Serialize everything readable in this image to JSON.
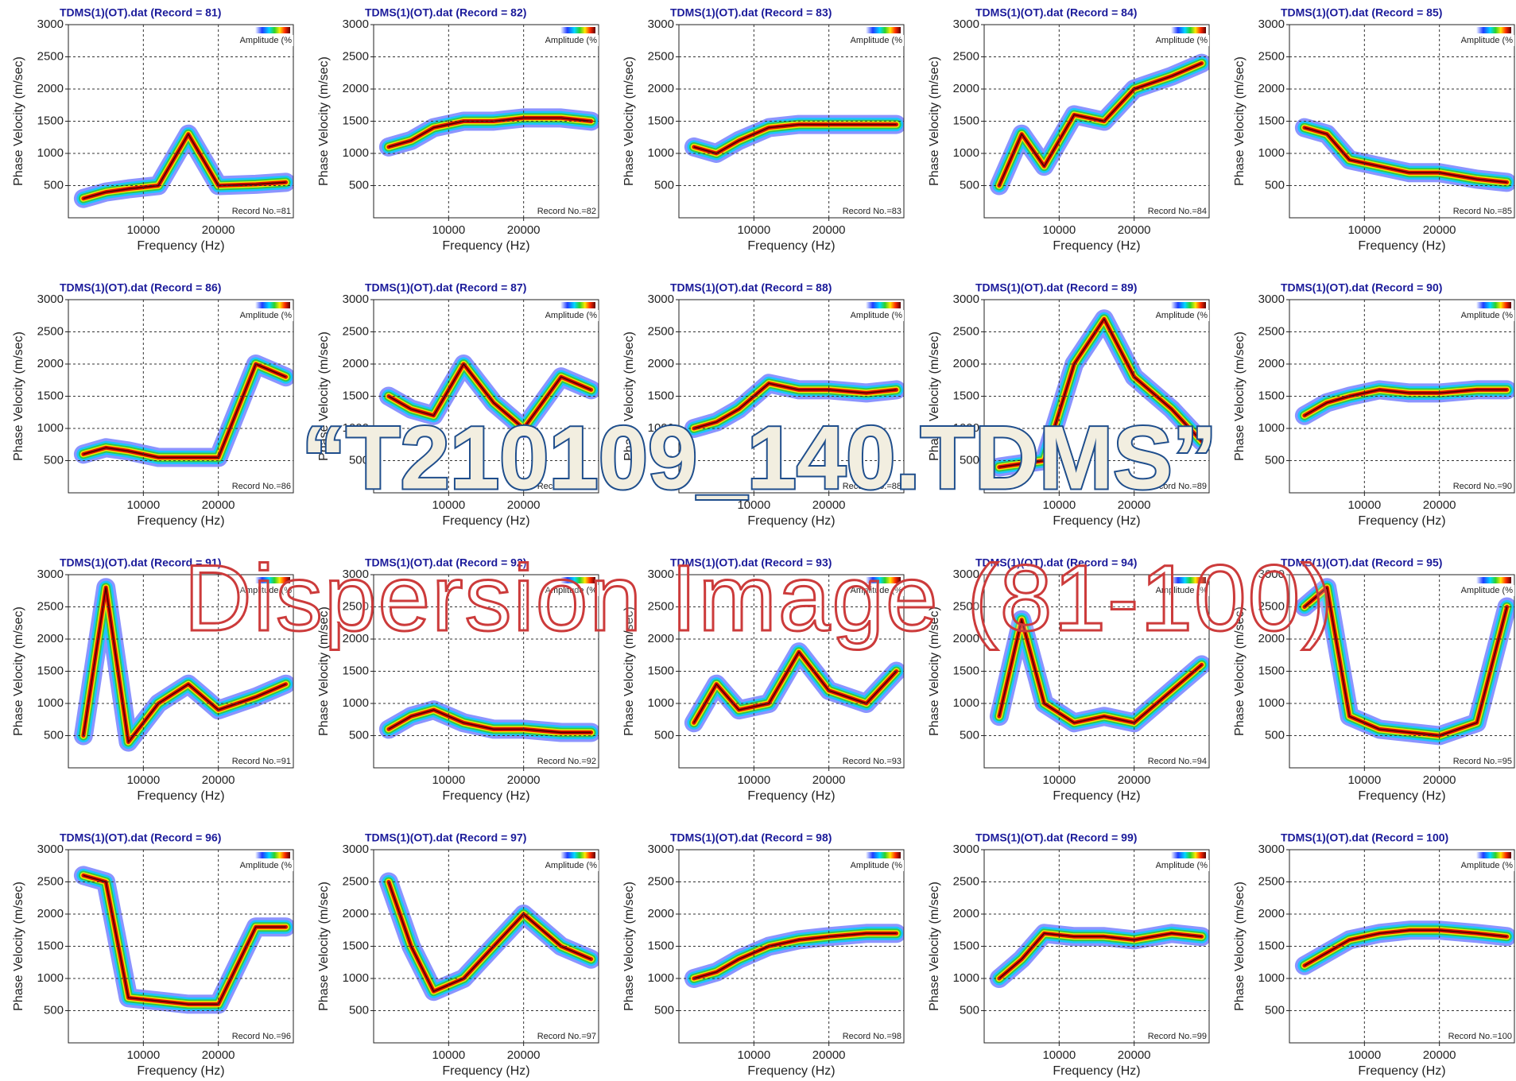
{
  "overlay_title": "“T210109_140.TDMS”",
  "overlay_subtitle": "Dispersion Image (81-100)",
  "chart_data": [
    {
      "type": "dispersion",
      "title": "TDMS(1)(OT).dat (Record = 81)",
      "xlabel": "Frequency (Hz)",
      "ylabel": "Phase Velocity (m/sec)",
      "legend_label": "Amplitude (%",
      "annotation": "Record No.=81",
      "xlim": [
        0,
        30000
      ],
      "xticks": [
        10000,
        20000
      ],
      "ylim": [
        0,
        3000
      ],
      "yticks": [
        500,
        1000,
        1500,
        2000,
        2500,
        3000
      ],
      "grid": true,
      "x": [
        2000,
        5000,
        8000,
        12000,
        16000,
        20000,
        25000,
        29000
      ],
      "values": [
        300,
        400,
        450,
        500,
        1300,
        500,
        520,
        550
      ]
    },
    {
      "type": "dispersion",
      "title": "TDMS(1)(OT).dat (Record = 82)",
      "xlabel": "Frequency (Hz)",
      "ylabel": "Phase Velocity (m/sec)",
      "legend_label": "Amplitude (%",
      "annotation": "Record No.=82",
      "xlim": [
        0,
        30000
      ],
      "xticks": [
        10000,
        20000
      ],
      "ylim": [
        0,
        3000
      ],
      "yticks": [
        500,
        1000,
        1500,
        2000,
        2500,
        3000
      ],
      "grid": true,
      "x": [
        2000,
        5000,
        8000,
        12000,
        16000,
        20000,
        25000,
        29000
      ],
      "values": [
        1100,
        1200,
        1400,
        1500,
        1500,
        1550,
        1550,
        1500
      ]
    },
    {
      "type": "dispersion",
      "title": "TDMS(1)(OT).dat (Record = 83)",
      "xlabel": "Frequency (Hz)",
      "ylabel": "Phase Velocity (m/sec)",
      "legend_label": "Amplitude (%",
      "annotation": "Record No.=83",
      "xlim": [
        0,
        30000
      ],
      "xticks": [
        10000,
        20000
      ],
      "ylim": [
        0,
        3000
      ],
      "yticks": [
        500,
        1000,
        1500,
        2000,
        2500,
        3000
      ],
      "grid": true,
      "x": [
        2000,
        5000,
        8000,
        12000,
        16000,
        20000,
        25000,
        29000
      ],
      "values": [
        1100,
        1000,
        1200,
        1400,
        1450,
        1450,
        1450,
        1450
      ]
    },
    {
      "type": "dispersion",
      "title": "TDMS(1)(OT).dat (Record = 84)",
      "xlabel": "Frequency (Hz)",
      "ylabel": "Phase Velocity (m/sec)",
      "legend_label": "Amplitude (%",
      "annotation": "Record No.=84",
      "xlim": [
        0,
        30000
      ],
      "xticks": [
        10000,
        20000
      ],
      "ylim": [
        0,
        3000
      ],
      "yticks": [
        500,
        1000,
        1500,
        2000,
        2500,
        3000
      ],
      "grid": true,
      "x": [
        2000,
        5000,
        8000,
        12000,
        16000,
        20000,
        25000,
        29000
      ],
      "values": [
        500,
        1300,
        800,
        1600,
        1500,
        2000,
        2200,
        2400
      ]
    },
    {
      "type": "dispersion",
      "title": "TDMS(1)(OT).dat (Record = 85)",
      "xlabel": "Frequency (Hz)",
      "ylabel": "Phase Velocity (m/sec)",
      "legend_label": "Amplitude (%",
      "annotation": "Record No.=85",
      "xlim": [
        0,
        30000
      ],
      "xticks": [
        10000,
        20000
      ],
      "ylim": [
        0,
        3000
      ],
      "yticks": [
        500,
        1000,
        1500,
        2000,
        2500,
        3000
      ],
      "grid": true,
      "x": [
        2000,
        5000,
        8000,
        12000,
        16000,
        20000,
        25000,
        29000
      ],
      "values": [
        1400,
        1300,
        900,
        800,
        700,
        700,
        600,
        550
      ]
    },
    {
      "type": "dispersion",
      "title": "TDMS(1)(OT).dat (Record = 86)",
      "xlabel": "Frequency (Hz)",
      "ylabel": "Phase Velocity (m/sec)",
      "legend_label": "Amplitude (%",
      "annotation": "Record No.=86",
      "xlim": [
        0,
        30000
      ],
      "xticks": [
        10000,
        20000
      ],
      "ylim": [
        0,
        3000
      ],
      "yticks": [
        500,
        1000,
        1500,
        2000,
        2500,
        3000
      ],
      "grid": true,
      "x": [
        2000,
        5000,
        8000,
        12000,
        16000,
        20000,
        25000,
        29000
      ],
      "values": [
        600,
        700,
        650,
        550,
        550,
        550,
        2000,
        1800
      ]
    },
    {
      "type": "dispersion",
      "title": "TDMS(1)(OT).dat (Record = 87)",
      "xlabel": "Frequency (Hz)",
      "ylabel": "Phase Velocity (m/sec)",
      "legend_label": "Amplitude (%",
      "annotation": "Record No.=87",
      "xlim": [
        0,
        30000
      ],
      "xticks": [
        10000,
        20000
      ],
      "ylim": [
        0,
        3000
      ],
      "yticks": [
        500,
        1000,
        1500,
        2000,
        2500,
        3000
      ],
      "grid": true,
      "x": [
        2000,
        5000,
        8000,
        12000,
        16000,
        20000,
        25000,
        29000
      ],
      "values": [
        1500,
        1300,
        1200,
        2000,
        1400,
        1000,
        1800,
        1600
      ]
    },
    {
      "type": "dispersion",
      "title": "TDMS(1)(OT).dat (Record = 88)",
      "xlabel": "Frequency (Hz)",
      "ylabel": "Phase Velocity (m/sec)",
      "legend_label": "Amplitude (%",
      "annotation": "Record No.=88",
      "xlim": [
        0,
        30000
      ],
      "xticks": [
        10000,
        20000
      ],
      "ylim": [
        0,
        3000
      ],
      "yticks": [
        500,
        1000,
        1500,
        2000,
        2500,
        3000
      ],
      "grid": true,
      "x": [
        2000,
        5000,
        8000,
        12000,
        16000,
        20000,
        25000,
        29000
      ],
      "values": [
        1000,
        1100,
        1300,
        1700,
        1600,
        1600,
        1550,
        1600
      ]
    },
    {
      "type": "dispersion",
      "title": "TDMS(1)(OT).dat (Record = 89)",
      "xlabel": "Frequency (Hz)",
      "ylabel": "Phase Velocity (m/sec)",
      "legend_label": "Amplitude (%",
      "annotation": "Record No.=89",
      "xlim": [
        0,
        30000
      ],
      "xticks": [
        10000,
        20000
      ],
      "ylim": [
        0,
        3000
      ],
      "yticks": [
        500,
        1000,
        1500,
        2000,
        2500,
        3000
      ],
      "grid": true,
      "x": [
        2000,
        5000,
        8000,
        12000,
        16000,
        20000,
        25000,
        29000
      ],
      "values": [
        400,
        450,
        500,
        2000,
        2700,
        1800,
        1300,
        800
      ]
    },
    {
      "type": "dispersion",
      "title": "TDMS(1)(OT).dat (Record = 90)",
      "xlabel": "Frequency (Hz)",
      "ylabel": "Phase Velocity (m/sec)",
      "legend_label": "Amplitude (%",
      "annotation": "Record No.=90",
      "xlim": [
        0,
        30000
      ],
      "xticks": [
        10000,
        20000
      ],
      "ylim": [
        0,
        3000
      ],
      "yticks": [
        500,
        1000,
        1500,
        2000,
        2500,
        3000
      ],
      "grid": true,
      "x": [
        2000,
        5000,
        8000,
        12000,
        16000,
        20000,
        25000,
        29000
      ],
      "values": [
        1200,
        1400,
        1500,
        1600,
        1550,
        1550,
        1600,
        1600
      ]
    },
    {
      "type": "dispersion",
      "title": "TDMS(1)(OT).dat (Record = 91)",
      "xlabel": "Frequency (Hz)",
      "ylabel": "Phase Velocity (m/sec)",
      "legend_label": "Amplitude (%",
      "annotation": "Record No.=91",
      "xlim": [
        0,
        30000
      ],
      "xticks": [
        10000,
        20000
      ],
      "ylim": [
        0,
        3000
      ],
      "yticks": [
        500,
        1000,
        1500,
        2000,
        2500,
        3000
      ],
      "grid": true,
      "x": [
        2000,
        5000,
        8000,
        12000,
        16000,
        20000,
        25000,
        29000
      ],
      "values": [
        500,
        2800,
        400,
        1000,
        1300,
        900,
        1100,
        1300
      ]
    },
    {
      "type": "dispersion",
      "title": "TDMS(1)(OT).dat (Record = 92)",
      "xlabel": "Frequency (Hz)",
      "ylabel": "Phase Velocity (m/sec)",
      "legend_label": "Amplitude (%",
      "annotation": "Record No.=92",
      "xlim": [
        0,
        30000
      ],
      "xticks": [
        10000,
        20000
      ],
      "ylim": [
        0,
        3000
      ],
      "yticks": [
        500,
        1000,
        1500,
        2000,
        2500,
        3000
      ],
      "grid": true,
      "x": [
        2000,
        5000,
        8000,
        12000,
        16000,
        20000,
        25000,
        29000
      ],
      "values": [
        600,
        800,
        900,
        700,
        600,
        600,
        550,
        550
      ]
    },
    {
      "type": "dispersion",
      "title": "TDMS(1)(OT).dat (Record = 93)",
      "xlabel": "Frequency (Hz)",
      "ylabel": "Phase Velocity (m/sec)",
      "legend_label": "Amplitude (%",
      "annotation": "Record No.=93",
      "xlim": [
        0,
        30000
      ],
      "xticks": [
        10000,
        20000
      ],
      "ylim": [
        0,
        3000
      ],
      "yticks": [
        500,
        1000,
        1500,
        2000,
        2500,
        3000
      ],
      "grid": true,
      "x": [
        2000,
        5000,
        8000,
        12000,
        16000,
        20000,
        25000,
        29000
      ],
      "values": [
        700,
        1300,
        900,
        1000,
        1800,
        1200,
        1000,
        1500
      ]
    },
    {
      "type": "dispersion",
      "title": "TDMS(1)(OT).dat (Record = 94)",
      "xlabel": "Frequency (Hz)",
      "ylabel": "Phase Velocity (m/sec)",
      "legend_label": "Amplitude (%",
      "annotation": "Record No.=94",
      "xlim": [
        0,
        30000
      ],
      "xticks": [
        10000,
        20000
      ],
      "ylim": [
        0,
        3000
      ],
      "yticks": [
        500,
        1000,
        1500,
        2000,
        2500,
        3000
      ],
      "grid": true,
      "x": [
        2000,
        5000,
        8000,
        12000,
        16000,
        20000,
        25000,
        29000
      ],
      "values": [
        800,
        2300,
        1000,
        700,
        800,
        700,
        1200,
        1600
      ]
    },
    {
      "type": "dispersion",
      "title": "TDMS(1)(OT).dat (Record = 95)",
      "xlabel": "Frequency (Hz)",
      "ylabel": "Phase Velocity (m/sec)",
      "legend_label": "Amplitude (%",
      "annotation": "Record No.=95",
      "xlim": [
        0,
        30000
      ],
      "xticks": [
        10000,
        20000
      ],
      "ylim": [
        0,
        3000
      ],
      "yticks": [
        500,
        1000,
        1500,
        2000,
        2500,
        3000
      ],
      "grid": true,
      "x": [
        2000,
        5000,
        8000,
        12000,
        16000,
        20000,
        25000,
        29000
      ],
      "values": [
        2500,
        2800,
        800,
        600,
        550,
        500,
        700,
        2500
      ]
    },
    {
      "type": "dispersion",
      "title": "TDMS(1)(OT).dat (Record = 96)",
      "xlabel": "Frequency (Hz)",
      "ylabel": "Phase Velocity (m/sec)",
      "legend_label": "Amplitude (%",
      "annotation": "Record No.=96",
      "xlim": [
        0,
        30000
      ],
      "xticks": [
        10000,
        20000
      ],
      "ylim": [
        0,
        3000
      ],
      "yticks": [
        500,
        1000,
        1500,
        2000,
        2500,
        3000
      ],
      "grid": true,
      "x": [
        2000,
        5000,
        8000,
        12000,
        16000,
        20000,
        25000,
        29000
      ],
      "values": [
        2600,
        2500,
        700,
        650,
        600,
        600,
        1800,
        1800
      ]
    },
    {
      "type": "dispersion",
      "title": "TDMS(1)(OT).dat (Record = 97)",
      "xlabel": "Frequency (Hz)",
      "ylabel": "Phase Velocity (m/sec)",
      "legend_label": "Amplitude (%",
      "annotation": "Record No.=97",
      "xlim": [
        0,
        30000
      ],
      "xticks": [
        10000,
        20000
      ],
      "ylim": [
        0,
        3000
      ],
      "yticks": [
        500,
        1000,
        1500,
        2000,
        2500,
        3000
      ],
      "grid": true,
      "x": [
        2000,
        5000,
        8000,
        12000,
        16000,
        20000,
        25000,
        29000
      ],
      "values": [
        2500,
        1500,
        800,
        1000,
        1500,
        2000,
        1500,
        1300
      ]
    },
    {
      "type": "dispersion",
      "title": "TDMS(1)(OT).dat (Record = 98)",
      "xlabel": "Frequency (Hz)",
      "ylabel": "Phase Velocity (m/sec)",
      "legend_label": "Amplitude (%",
      "annotation": "Record No.=98",
      "xlim": [
        0,
        30000
      ],
      "xticks": [
        10000,
        20000
      ],
      "ylim": [
        0,
        3000
      ],
      "yticks": [
        500,
        1000,
        1500,
        2000,
        2500,
        3000
      ],
      "grid": true,
      "x": [
        2000,
        5000,
        8000,
        12000,
        16000,
        20000,
        25000,
        29000
      ],
      "values": [
        1000,
        1100,
        1300,
        1500,
        1600,
        1650,
        1700,
        1700
      ]
    },
    {
      "type": "dispersion",
      "title": "TDMS(1)(OT).dat (Record = 99)",
      "xlabel": "Frequency (Hz)",
      "ylabel": "Phase Velocity (m/sec)",
      "legend_label": "Amplitude (%",
      "annotation": "Record No.=99",
      "xlim": [
        0,
        30000
      ],
      "xticks": [
        10000,
        20000
      ],
      "ylim": [
        0,
        3000
      ],
      "yticks": [
        500,
        1000,
        1500,
        2000,
        2500,
        3000
      ],
      "grid": true,
      "x": [
        2000,
        5000,
        8000,
        12000,
        16000,
        20000,
        25000,
        29000
      ],
      "values": [
        1000,
        1300,
        1700,
        1650,
        1650,
        1600,
        1700,
        1650
      ]
    },
    {
      "type": "dispersion",
      "title": "TDMS(1)(OT).dat (Record = 100)",
      "xlabel": "Frequency (Hz)",
      "ylabel": "Phase Velocity (m/sec)",
      "legend_label": "Amplitude (%",
      "annotation": "Record No.=100",
      "xlim": [
        0,
        30000
      ],
      "xticks": [
        10000,
        20000
      ],
      "ylim": [
        0,
        3000
      ],
      "yticks": [
        500,
        1000,
        1500,
        2000,
        2500,
        3000
      ],
      "grid": true,
      "x": [
        2000,
        5000,
        8000,
        12000,
        16000,
        20000,
        25000,
        29000
      ],
      "values": [
        1200,
        1400,
        1600,
        1700,
        1750,
        1750,
        1700,
        1650
      ]
    }
  ]
}
